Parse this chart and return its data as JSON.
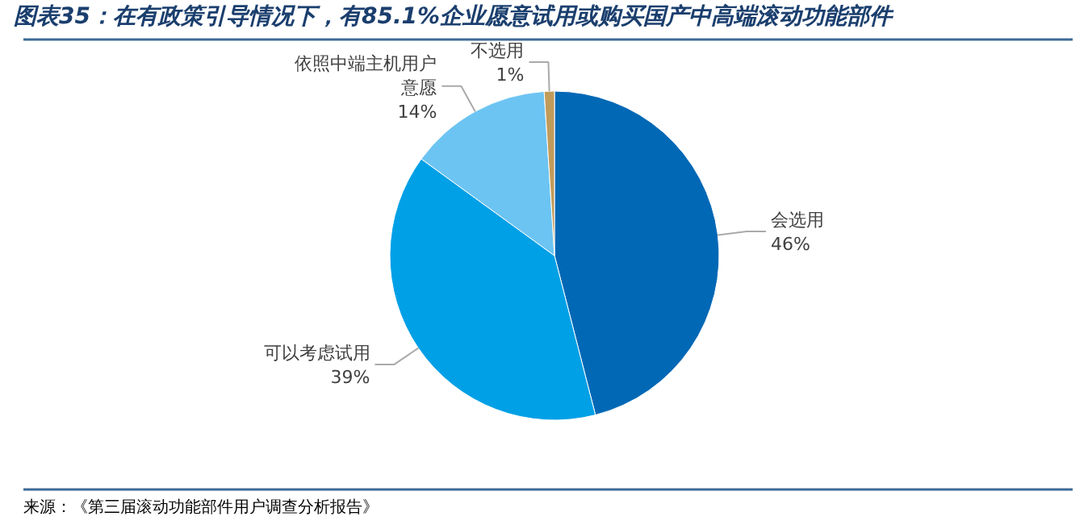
{
  "chart_data": {
    "type": "pie",
    "title": "图表35：在有政策引导情况下，有85.1%企业愿意试用或购买国产中高端滚动功能部件",
    "categories": [
      "会选用",
      "可以考虑试用",
      "依照中端主机用户意愿",
      "不选用"
    ],
    "values": [
      46,
      39,
      14,
      1
    ],
    "colors": [
      "#0068b5",
      "#00a0e6",
      "#6cc4f2",
      "#c19b5a"
    ],
    "value_labels": [
      "46%",
      "39%",
      "14%",
      "1%"
    ],
    "annotations": [
      "来源：《第三届滚动功能部件用户调查分析报告》"
    ]
  }
}
